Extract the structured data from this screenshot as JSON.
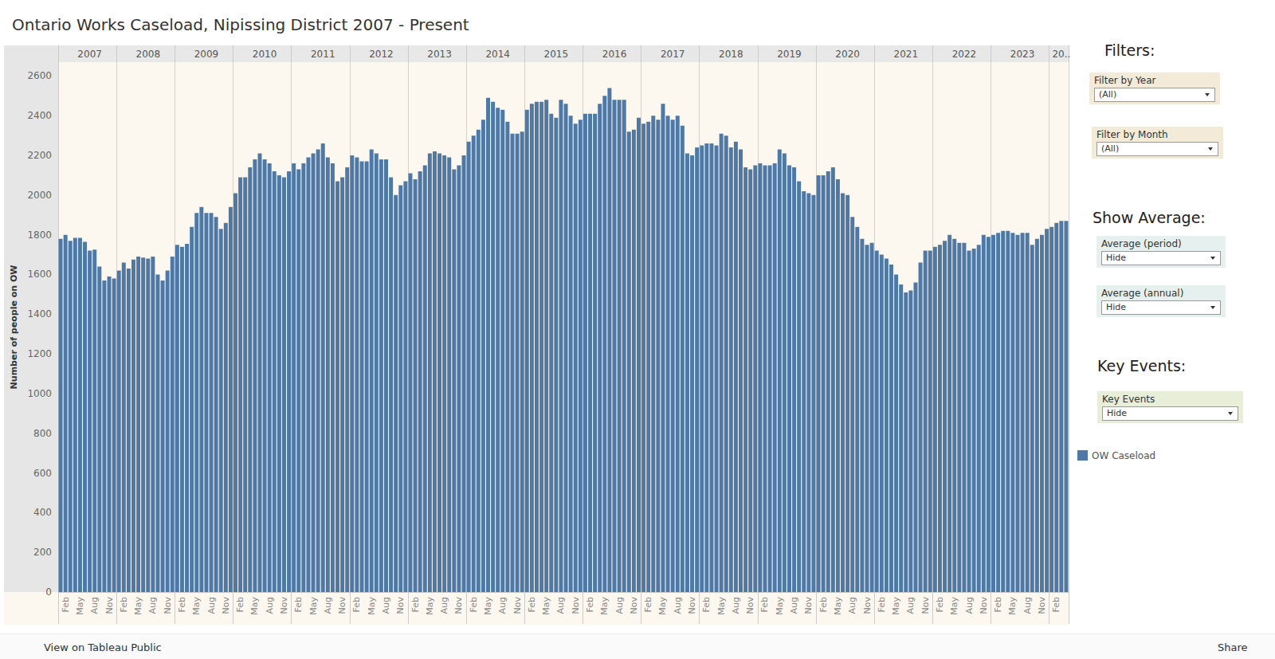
{
  "chart_data": {
    "type": "bar",
    "title": "Ontario Works Caseload, Nipissing District 2007 - Present",
    "y_label": "Number of people on OW",
    "year_headers": [
      "2007",
      "2008",
      "2009",
      "2010",
      "2011",
      "2012",
      "2013",
      "2014",
      "2015",
      "2016",
      "2017",
      "2018",
      "2019",
      "2020",
      "2021",
      "2022",
      "2023",
      "20.."
    ],
    "categories": [
      null,
      "Feb",
      null,
      null,
      "May",
      null,
      null,
      "Aug",
      null,
      null,
      "Nov",
      null,
      null,
      "Feb",
      null,
      null,
      "May",
      null,
      null,
      "Aug",
      null,
      null,
      "Nov",
      null,
      null,
      "Feb",
      null,
      null,
      "May",
      null,
      null,
      "Aug",
      null,
      null,
      "Nov",
      null,
      null,
      "Feb",
      null,
      null,
      "May",
      null,
      null,
      "Aug",
      null,
      null,
      "Nov",
      null,
      null,
      "Feb",
      null,
      null,
      "May",
      null,
      null,
      "Aug",
      null,
      null,
      "Nov",
      null,
      null,
      "Feb",
      null,
      null,
      "May",
      null,
      null,
      "Aug",
      null,
      null,
      "Nov",
      null,
      null,
      "Feb",
      null,
      null,
      "May",
      null,
      null,
      "Aug",
      null,
      null,
      "Nov",
      null,
      null,
      "Feb",
      null,
      null,
      "May",
      null,
      null,
      "Aug",
      null,
      null,
      "Nov",
      null,
      null,
      "Feb",
      null,
      null,
      "May",
      null,
      null,
      "Aug",
      null,
      null,
      "Nov",
      null,
      null,
      "Feb",
      null,
      null,
      "May",
      null,
      null,
      "Aug",
      null,
      null,
      "Nov",
      null,
      null,
      "Feb",
      null,
      null,
      "May",
      null,
      null,
      "Aug",
      null,
      null,
      "Nov",
      null,
      null,
      "Feb",
      null,
      null,
      "May",
      null,
      null,
      "Aug",
      null,
      null,
      "Nov",
      null,
      null,
      "Feb",
      null,
      null,
      "May",
      null,
      null,
      "Aug",
      null,
      null,
      "Nov",
      null,
      null,
      "Feb",
      null,
      null,
      "May",
      null,
      null,
      "Aug",
      null,
      null,
      "Nov",
      null,
      null,
      "Feb",
      null,
      null,
      "May",
      null,
      null,
      "Aug",
      null,
      null,
      "Nov",
      null,
      null,
      "Feb",
      null,
      null,
      "May",
      null,
      null,
      "Aug",
      null,
      null,
      "Nov",
      null,
      null,
      "Feb",
      null,
      null,
      "May",
      null,
      null,
      "Aug",
      null,
      null,
      "Nov",
      null,
      null,
      "Feb",
      null,
      null
    ],
    "series": [
      {
        "name": "OW Caseload",
        "color": "#4e79a7",
        "values": [
          1780,
          1800,
          1770,
          1785,
          1785,
          1765,
          1720,
          1725,
          1640,
          1570,
          1590,
          1580,
          1620,
          1660,
          1630,
          1675,
          1690,
          1685,
          1680,
          1690,
          1600,
          1570,
          1620,
          1690,
          1750,
          1740,
          1755,
          1840,
          1910,
          1940,
          1910,
          1910,
          1890,
          1830,
          1860,
          1940,
          2010,
          2090,
          2090,
          2140,
          2180,
          2210,
          2180,
          2160,
          2120,
          2100,
          2090,
          2120,
          2160,
          2130,
          2160,
          2190,
          2210,
          2230,
          2260,
          2190,
          2160,
          2070,
          2090,
          2140,
          2200,
          2190,
          2170,
          2170,
          2230,
          2210,
          2180,
          2180,
          2090,
          2000,
          2050,
          2070,
          2110,
          2080,
          2120,
          2150,
          2210,
          2220,
          2210,
          2200,
          2190,
          2130,
          2150,
          2200,
          2270,
          2300,
          2330,
          2380,
          2490,
          2470,
          2440,
          2430,
          2370,
          2310,
          2310,
          2320,
          2430,
          2460,
          2470,
          2470,
          2480,
          2410,
          2390,
          2480,
          2460,
          2400,
          2360,
          2380,
          2410,
          2410,
          2410,
          2460,
          2500,
          2540,
          2480,
          2480,
          2480,
          2320,
          2330,
          2390,
          2360,
          2370,
          2400,
          2380,
          2460,
          2400,
          2380,
          2400,
          2350,
          2210,
          2200,
          2240,
          2250,
          2260,
          2260,
          2250,
          2310,
          2300,
          2240,
          2270,
          2230,
          2140,
          2130,
          2150,
          2160,
          2150,
          2150,
          2160,
          2230,
          2210,
          2150,
          2140,
          2070,
          2020,
          2010,
          2000,
          2100,
          2100,
          2120,
          2140,
          2080,
          2010,
          2000,
          1890,
          1840,
          1780,
          1750,
          1760,
          1720,
          1700,
          1680,
          1650,
          1600,
          1550,
          1510,
          1520,
          1560,
          1660,
          1720,
          1720,
          1740,
          1750,
          1770,
          1800,
          1780,
          1760,
          1760,
          1720,
          1730,
          1750,
          1800,
          1790,
          1800,
          1810,
          1820,
          1820,
          1810,
          1800,
          1810,
          1810,
          1750,
          1780,
          1800,
          1830,
          1840,
          1860,
          1870,
          1870
        ]
      }
    ],
    "ylim": [
      0,
      2670
    ],
    "yticks": [
      0,
      200,
      400,
      600,
      800,
      1000,
      1200,
      1400,
      1600,
      1800,
      2000,
      2200,
      2400,
      2600
    ],
    "grid": false,
    "legend": "right"
  },
  "dashboard": {
    "filters": {
      "heading": "Filters:",
      "controls": [
        {
          "label": "Filter by Year",
          "value": "(All)"
        },
        {
          "label": "Filter by Month",
          "value": "(All)"
        }
      ]
    },
    "show_average": {
      "heading": "Show Average:",
      "controls": [
        {
          "label": "Average (period)",
          "value": "Hide"
        },
        {
          "label": "Average (annual)",
          "value": "Hide"
        }
      ]
    },
    "key_events": {
      "heading": "Key Events:",
      "controls": [
        {
          "label": "Key Events",
          "value": "Hide"
        }
      ]
    },
    "footer": {
      "link": "View on Tableau Public",
      "share": "Share"
    }
  }
}
